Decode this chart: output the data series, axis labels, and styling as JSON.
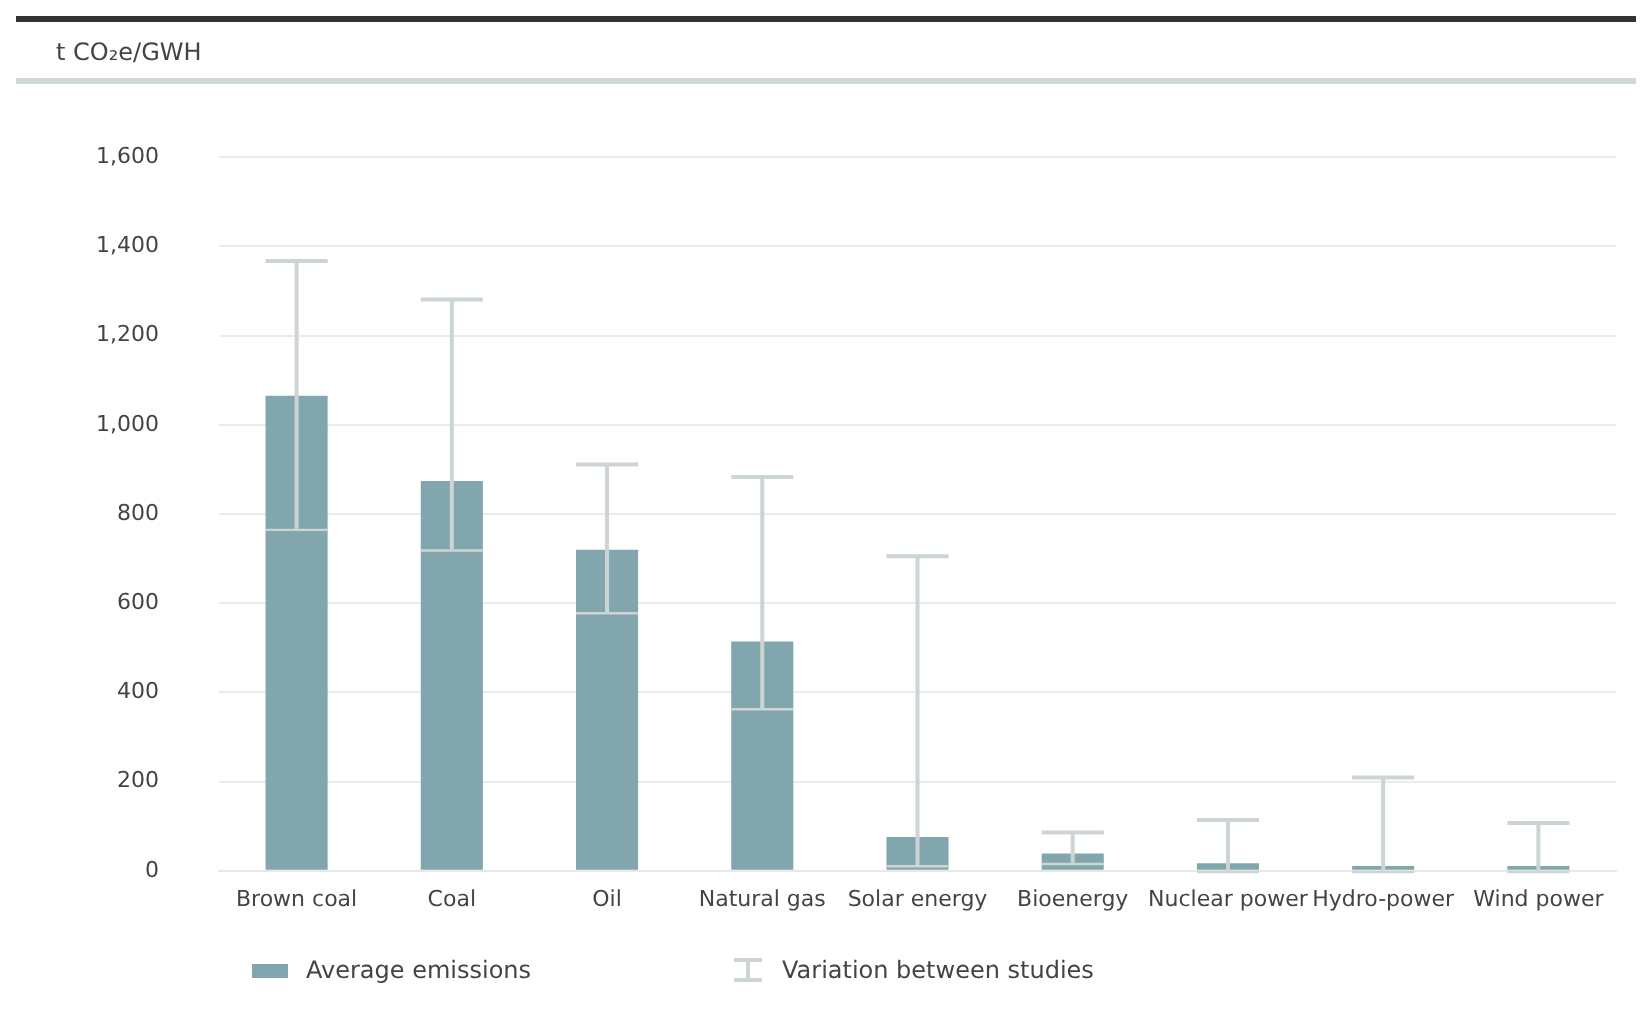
{
  "chart_data": {
    "type": "bar",
    "ylabel": "t CO₂e/GWH",
    "categories": [
      "Brown coal",
      "Coal",
      "Oil",
      "Natural gas",
      "Solar energy",
      "Bioenergy",
      "Nuclear power",
      "Hydro-power",
      "Wind power"
    ],
    "series": [
      {
        "name": "Average emissions",
        "color": "#82a6ae",
        "values": [
          1065,
          874,
          720,
          514,
          76,
          39,
          17,
          11,
          11
        ],
        "errors": [
          [
            767,
            1367
          ],
          [
            721,
            1281
          ],
          [
            580,
            911
          ],
          [
            365,
            883
          ],
          [
            13,
            705
          ],
          [
            18,
            86
          ],
          [
            0,
            114
          ],
          [
            0,
            209
          ],
          [
            0,
            107
          ]
        ]
      }
    ],
    "ylim": [
      0,
      1600
    ],
    "yticks": [
      {
        "value": 0,
        "label": "0"
      },
      {
        "value": 200,
        "label": "200"
      },
      {
        "value": 400,
        "label": "400"
      },
      {
        "value": 600,
        "label": "600"
      },
      {
        "value": 800,
        "label": "800"
      },
      {
        "value": 1000,
        "label": "1,000"
      },
      {
        "value": 1200,
        "label": "1,200"
      },
      {
        "value": 1400,
        "label": "1,400"
      },
      {
        "value": 1600,
        "label": "1,600"
      }
    ],
    "grid": "y",
    "legend": "bottom",
    "annotations": [
      "Variation between studies"
    ]
  }
}
